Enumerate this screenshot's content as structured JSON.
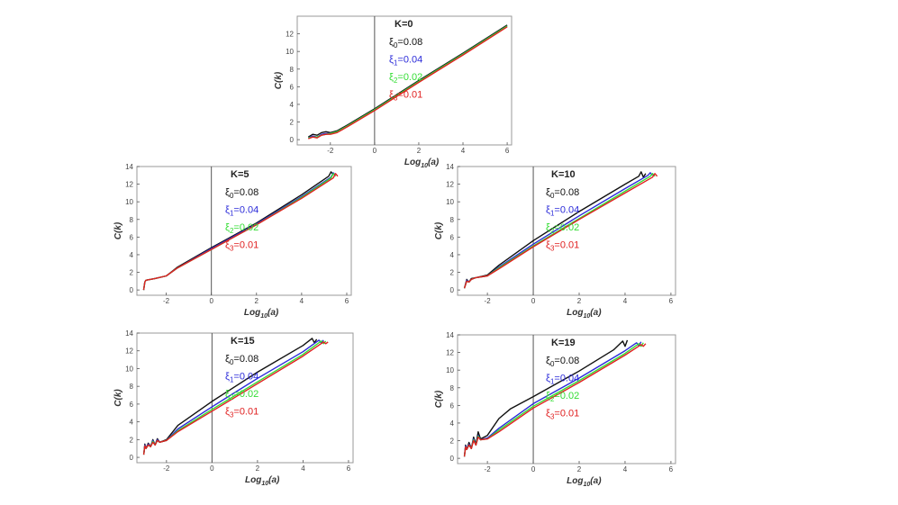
{
  "colors": {
    "xi0": "#111111",
    "xi1": "#2b2bd9",
    "xi2": "#33dd33",
    "xi3": "#e02020",
    "frame": "#999999",
    "axis": "#555555"
  },
  "chart_data": [
    {
      "type": "line",
      "title": "K=0",
      "xlabel": "Log10(a)",
      "ylabel": "C(k)",
      "xlim": [
        -3.5,
        6.2
      ],
      "ylim": [
        -0.6,
        14
      ],
      "xticks": [
        -2,
        0,
        2,
        4,
        6
      ],
      "yticks": [
        0,
        2,
        4,
        6,
        8,
        10,
        12
      ],
      "legend": [
        "ξ0=0.08",
        "ξ1=0.04",
        "ξ2=0.02",
        "ξ3=0.01"
      ],
      "series": [
        {
          "name": "ξ0=0.08",
          "color_key": "xi0",
          "x": [
            -3.0,
            -2.8,
            -2.6,
            -2.4,
            -2.2,
            -2.0,
            -1.7,
            -1.2,
            0,
            2,
            4,
            6
          ],
          "y": [
            0.3,
            0.6,
            0.5,
            0.8,
            0.9,
            0.8,
            1.0,
            1.7,
            3.5,
            6.7,
            9.8,
            13.0
          ]
        },
        {
          "name": "ξ1=0.04",
          "color_key": "xi1",
          "x": [
            -3.0,
            -2.8,
            -2.6,
            -2.4,
            -2.2,
            -2.0,
            -1.7,
            -1.2,
            0,
            2,
            4,
            6
          ],
          "y": [
            0.2,
            0.4,
            0.3,
            0.6,
            0.7,
            0.7,
            0.9,
            1.6,
            3.4,
            6.6,
            9.7,
            12.9
          ]
        },
        {
          "name": "ξ2=0.02",
          "color_key": "xi2",
          "x": [
            -3.0,
            -2.8,
            -2.6,
            -2.4,
            -2.2,
            -2.0,
            -1.7,
            -1.2,
            0,
            2,
            4,
            6
          ],
          "y": [
            0.2,
            0.3,
            0.3,
            0.5,
            0.6,
            0.7,
            0.9,
            1.6,
            3.4,
            6.6,
            9.7,
            12.9
          ]
        },
        {
          "name": "ξ3=0.01",
          "color_key": "xi3",
          "x": [
            -3.0,
            -2.8,
            -2.6,
            -2.4,
            -2.2,
            -2.0,
            -1.7,
            -1.2,
            0,
            2,
            4,
            6
          ],
          "y": [
            0.1,
            0.3,
            0.2,
            0.5,
            0.6,
            0.6,
            0.8,
            1.5,
            3.3,
            6.5,
            9.6,
            12.8
          ]
        }
      ]
    },
    {
      "type": "line",
      "title": "K=5",
      "xlabel": "Log10(a)",
      "ylabel": "C(k)",
      "xlim": [
        -3.3,
        6.2
      ],
      "ylim": [
        -0.6,
        14
      ],
      "xticks": [
        -2,
        0,
        2,
        4,
        6
      ],
      "yticks": [
        0,
        2,
        4,
        6,
        8,
        10,
        12,
        14
      ],
      "legend": [
        "ξ0=0.08",
        "ξ1=0.04",
        "ξ2=0.02",
        "ξ3=0.01"
      ],
      "series": [
        {
          "name": "ξ0=0.08",
          "color_key": "xi0",
          "x": [
            -3.0,
            -2.95,
            -2.9,
            -2.5,
            -2.0,
            -1.5,
            0,
            2,
            4,
            5.2,
            5.3,
            5.4
          ],
          "y": [
            0.0,
            0.9,
            1.1,
            1.3,
            1.6,
            2.6,
            4.8,
            7.6,
            10.8,
            12.9,
            13.4,
            13.1
          ]
        },
        {
          "name": "ξ1=0.04",
          "color_key": "xi1",
          "x": [
            -3.0,
            -2.95,
            -2.9,
            -2.5,
            -2.0,
            -1.5,
            0,
            2,
            4,
            5.3,
            5.4,
            5.5
          ],
          "y": [
            0.0,
            0.9,
            1.1,
            1.3,
            1.6,
            2.5,
            4.7,
            7.5,
            10.6,
            12.8,
            13.3,
            13.0
          ]
        },
        {
          "name": "ξ2=0.02",
          "color_key": "xi2",
          "x": [
            -3.0,
            -2.95,
            -2.9,
            -2.5,
            -2.0,
            -1.5,
            0,
            2,
            4,
            5.3,
            5.4,
            5.5
          ],
          "y": [
            0.0,
            0.9,
            1.1,
            1.3,
            1.6,
            2.5,
            4.6,
            7.4,
            10.5,
            12.7,
            13.2,
            12.9
          ]
        },
        {
          "name": "ξ3=0.01",
          "color_key": "xi3",
          "x": [
            -3.0,
            -2.95,
            -2.9,
            -2.5,
            -2.0,
            -1.5,
            0,
            2,
            4,
            5.4,
            5.5,
            5.6
          ],
          "y": [
            0.0,
            0.9,
            1.1,
            1.3,
            1.6,
            2.5,
            4.6,
            7.4,
            10.4,
            12.7,
            13.2,
            12.9
          ]
        }
      ]
    },
    {
      "type": "line",
      "title": "K=10",
      "xlabel": "Log10(a)",
      "ylabel": "C(k)",
      "xlim": [
        -3.3,
        6.2
      ],
      "ylim": [
        -0.6,
        14
      ],
      "xticks": [
        -2,
        0,
        2,
        4,
        6
      ],
      "yticks": [
        0,
        2,
        4,
        6,
        8,
        10,
        12,
        14
      ],
      "legend": [
        "ξ0=0.08",
        "ξ1=0.04",
        "ξ2=0.02",
        "ξ3=0.01"
      ],
      "series": [
        {
          "name": "ξ0=0.08",
          "color_key": "xi0",
          "x": [
            -3.0,
            -2.9,
            -2.8,
            -2.7,
            -2.5,
            -2.0,
            -1.5,
            0,
            2,
            4,
            4.6,
            4.7,
            4.8,
            4.9
          ],
          "y": [
            0.2,
            1.2,
            0.9,
            1.3,
            1.4,
            1.7,
            2.8,
            5.6,
            8.9,
            12.0,
            12.9,
            13.4,
            12.8,
            13.2
          ]
        },
        {
          "name": "ξ1=0.04",
          "color_key": "xi1",
          "x": [
            -3.0,
            -2.9,
            -2.8,
            -2.7,
            -2.5,
            -2.0,
            -1.5,
            0,
            2,
            4,
            5.0,
            5.1,
            5.2
          ],
          "y": [
            0.2,
            1.1,
            0.9,
            1.2,
            1.4,
            1.6,
            2.6,
            5.2,
            8.4,
            11.5,
            13.0,
            13.3,
            13.0
          ]
        },
        {
          "name": "ξ2=0.02",
          "color_key": "xi2",
          "x": [
            -3.0,
            -2.9,
            -2.8,
            -2.7,
            -2.5,
            -2.0,
            -1.5,
            0,
            2,
            4,
            5.1,
            5.2,
            5.3
          ],
          "y": [
            0.2,
            1.0,
            0.9,
            1.2,
            1.4,
            1.6,
            2.5,
            5.0,
            8.1,
            11.2,
            12.9,
            13.2,
            12.9
          ]
        },
        {
          "name": "ξ3=0.01",
          "color_key": "xi3",
          "x": [
            -3.0,
            -2.9,
            -2.8,
            -2.7,
            -2.5,
            -2.0,
            -1.5,
            0,
            2,
            4,
            5.2,
            5.3,
            5.4
          ],
          "y": [
            0.2,
            1.0,
            0.9,
            1.2,
            1.4,
            1.6,
            2.4,
            4.9,
            8.0,
            11.0,
            12.8,
            13.2,
            12.9
          ]
        }
      ]
    },
    {
      "type": "line",
      "title": "K=15",
      "xlabel": "Log10(a)",
      "ylabel": "C(k)",
      "xlim": [
        -3.3,
        6.2
      ],
      "ylim": [
        -0.6,
        14
      ],
      "xticks": [
        -2,
        0,
        2,
        4,
        6
      ],
      "yticks": [
        0,
        2,
        4,
        6,
        8,
        10,
        12,
        14
      ],
      "legend": [
        "ξ0=0.08",
        "ξ1=0.04",
        "ξ2=0.02",
        "ξ3=0.01"
      ],
      "series": [
        {
          "name": "ξ0=0.08",
          "color_key": "xi0",
          "x": [
            -3.0,
            -2.95,
            -2.9,
            -2.8,
            -2.7,
            -2.6,
            -2.5,
            -2.4,
            -2.3,
            -2.0,
            -1.5,
            0,
            2,
            4,
            4.4,
            4.5,
            4.6
          ],
          "y": [
            0.3,
            1.5,
            1.0,
            1.6,
            1.2,
            2.0,
            1.4,
            2.1,
            1.7,
            2.0,
            3.6,
            6.3,
            9.6,
            12.6,
            13.4,
            12.9,
            13.3
          ]
        },
        {
          "name": "ξ1=0.04",
          "color_key": "xi1",
          "x": [
            -3.0,
            -2.95,
            -2.9,
            -2.8,
            -2.7,
            -2.6,
            -2.5,
            -2.4,
            -2.3,
            -2.0,
            -1.5,
            0,
            2,
            4,
            4.7,
            4.8,
            4.9
          ],
          "y": [
            0.3,
            1.4,
            1.0,
            1.5,
            1.2,
            1.9,
            1.4,
            2.0,
            1.7,
            1.9,
            3.2,
            5.7,
            8.9,
            11.9,
            13.2,
            12.9,
            13.2
          ]
        },
        {
          "name": "ξ2=0.02",
          "color_key": "xi2",
          "x": [
            -3.0,
            -2.95,
            -2.9,
            -2.8,
            -2.7,
            -2.6,
            -2.5,
            -2.4,
            -2.3,
            -2.0,
            -1.5,
            0,
            2,
            4,
            4.8,
            4.9,
            5.0
          ],
          "y": [
            0.3,
            1.3,
            1.0,
            1.4,
            1.2,
            1.8,
            1.4,
            1.9,
            1.7,
            1.9,
            3.0,
            5.4,
            8.5,
            11.6,
            13.1,
            12.8,
            13.1
          ]
        },
        {
          "name": "ξ3=0.01",
          "color_key": "xi3",
          "x": [
            -3.0,
            -2.95,
            -2.9,
            -2.8,
            -2.7,
            -2.6,
            -2.5,
            -2.4,
            -2.3,
            -2.0,
            -1.5,
            0,
            2,
            4,
            4.9,
            5.0,
            5.1
          ],
          "y": [
            0.3,
            1.3,
            1.0,
            1.4,
            1.2,
            1.7,
            1.4,
            1.9,
            1.7,
            1.9,
            2.9,
            5.2,
            8.3,
            11.4,
            13.0,
            12.8,
            13.0
          ]
        }
      ]
    },
    {
      "type": "line",
      "title": "K=19",
      "xlabel": "Log10(a)",
      "ylabel": "C(k)",
      "xlim": [
        -3.3,
        6.2
      ],
      "ylim": [
        -0.6,
        14
      ],
      "xticks": [
        -2,
        0,
        2,
        4,
        6
      ],
      "yticks": [
        0,
        2,
        4,
        6,
        8,
        10,
        12,
        14
      ],
      "legend": [
        "ξ0=0.08",
        "ξ1=0.04",
        "ξ2=0.02",
        "ξ3=0.01"
      ],
      "series": [
        {
          "name": "ξ0=0.08",
          "color_key": "xi0",
          "x": [
            -3.0,
            -2.95,
            -2.9,
            -2.8,
            -2.7,
            -2.6,
            -2.5,
            -2.4,
            -2.3,
            -2.0,
            -1.5,
            -1.0,
            0,
            2,
            3.5,
            3.9,
            4.0,
            4.1
          ],
          "y": [
            0.2,
            1.5,
            1.0,
            1.8,
            1.1,
            2.4,
            1.6,
            3.0,
            2.2,
            2.6,
            4.5,
            5.6,
            7.0,
            9.9,
            12.3,
            13.3,
            12.7,
            13.4
          ]
        },
        {
          "name": "ξ1=0.04",
          "color_key": "xi1",
          "x": [
            -3.0,
            -2.95,
            -2.9,
            -2.8,
            -2.7,
            -2.6,
            -2.5,
            -2.4,
            -2.3,
            -2.0,
            -1.5,
            0,
            2,
            4,
            4.5,
            4.6,
            4.7
          ],
          "y": [
            0.2,
            1.4,
            1.0,
            1.6,
            1.1,
            2.2,
            1.5,
            2.6,
            2.1,
            2.3,
            3.4,
            6.2,
            9.1,
            12.2,
            13.1,
            12.8,
            13.2
          ]
        },
        {
          "name": "ξ2=0.02",
          "color_key": "xi2",
          "x": [
            -3.0,
            -2.95,
            -2.9,
            -2.8,
            -2.7,
            -2.6,
            -2.5,
            -2.4,
            -2.3,
            -2.0,
            -1.5,
            0,
            2,
            4,
            4.6,
            4.7,
            4.8
          ],
          "y": [
            0.2,
            1.3,
            1.0,
            1.5,
            1.1,
            2.1,
            1.5,
            2.5,
            2.1,
            2.2,
            3.2,
            5.9,
            8.8,
            11.9,
            13.0,
            12.7,
            13.1
          ]
        },
        {
          "name": "ξ3=0.01",
          "color_key": "xi3",
          "x": [
            -3.0,
            -2.95,
            -2.9,
            -2.8,
            -2.7,
            -2.6,
            -2.5,
            -2.4,
            -2.3,
            -2.0,
            -1.5,
            0,
            2,
            4,
            4.7,
            4.8,
            4.9
          ],
          "y": [
            0.2,
            1.3,
            1.0,
            1.5,
            1.1,
            2.0,
            1.5,
            2.4,
            2.1,
            2.2,
            3.0,
            5.7,
            8.6,
            11.7,
            12.9,
            12.7,
            13.0
          ]
        }
      ]
    }
  ]
}
